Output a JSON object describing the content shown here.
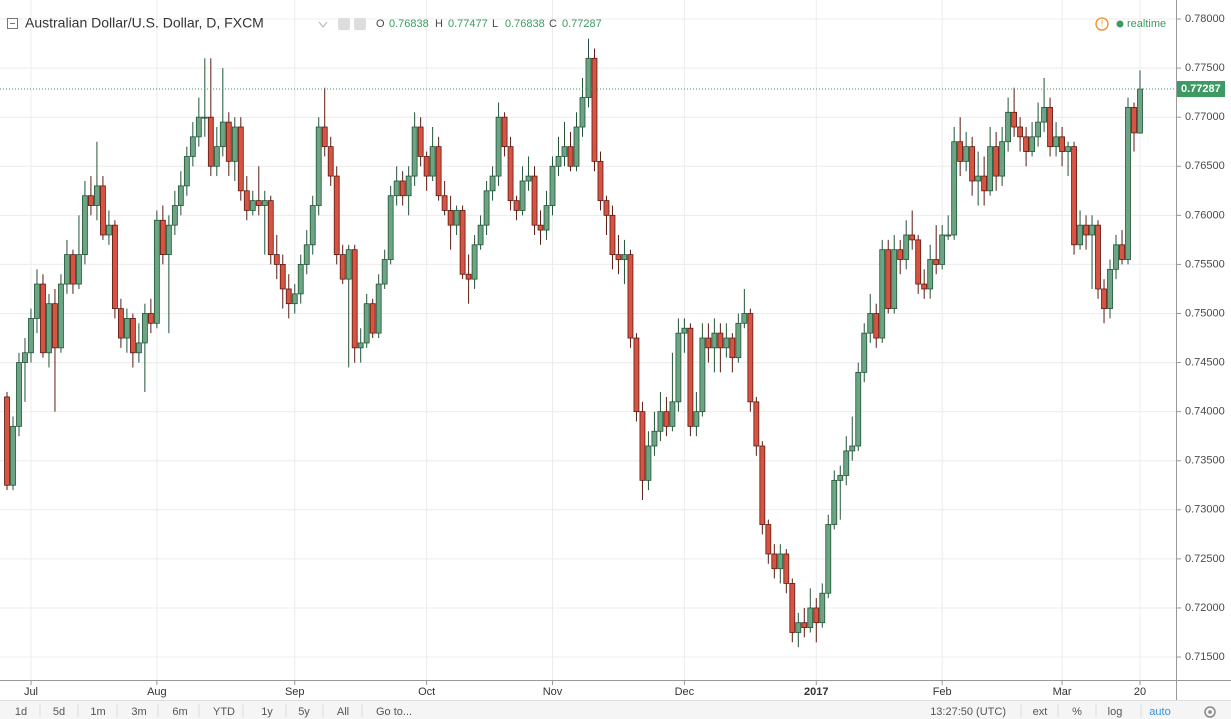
{
  "chart_data": {
    "type": "candlestick",
    "title": "Australian Dollar/U.S. Dollar, D, FXCM",
    "ohlc_header": [
      {
        "key": "O",
        "value": 0.76838
      },
      {
        "key": "H",
        "value": 0.77477
      },
      {
        "key": "L",
        "value": 0.76838
      },
      {
        "key": "C",
        "value": 0.77287
      }
    ],
    "status": "realtime",
    "up_color": "#6ba583",
    "up_border": "#225437",
    "down_color": "#d75442",
    "down_border": "#5b1a13",
    "grid": true,
    "ylim": [
      0.71266,
      0.78194
    ],
    "yticks": [
      {
        "value": 0.78,
        "label": "0.78000"
      },
      {
        "value": 0.775,
        "label": "0.77500"
      },
      {
        "value": 0.77,
        "label": "0.77000"
      },
      {
        "value": 0.765,
        "label": "0.76500"
      },
      {
        "value": 0.76,
        "label": "0.76000"
      },
      {
        "value": 0.755,
        "label": "0.75500"
      },
      {
        "value": 0.75,
        "label": "0.75000"
      },
      {
        "value": 0.745,
        "label": "0.74500"
      },
      {
        "value": 0.74,
        "label": "0.74000"
      },
      {
        "value": 0.735,
        "label": "0.73500"
      },
      {
        "value": 0.73,
        "label": "0.73000"
      },
      {
        "value": 0.725,
        "label": "0.72500"
      },
      {
        "value": 0.72,
        "label": "0.72000"
      },
      {
        "value": 0.715,
        "label": "0.71500"
      }
    ],
    "categories": [
      null,
      null,
      null,
      null,
      "Jul",
      null,
      null,
      null,
      null,
      null,
      null,
      null,
      null,
      null,
      null,
      null,
      null,
      null,
      null,
      null,
      null,
      null,
      null,
      null,
      null,
      "Aug",
      null,
      null,
      null,
      null,
      null,
      null,
      null,
      null,
      null,
      null,
      null,
      null,
      null,
      null,
      null,
      null,
      null,
      null,
      null,
      null,
      null,
      null,
      "Sep",
      null,
      null,
      null,
      null,
      null,
      null,
      null,
      null,
      null,
      null,
      null,
      null,
      null,
      null,
      null,
      null,
      null,
      null,
      null,
      null,
      null,
      "Oct",
      null,
      null,
      null,
      null,
      null,
      null,
      null,
      null,
      null,
      null,
      null,
      null,
      null,
      null,
      null,
      null,
      null,
      null,
      null,
      null,
      "Nov",
      null,
      null,
      null,
      null,
      null,
      null,
      null,
      null,
      null,
      null,
      null,
      null,
      null,
      null,
      null,
      null,
      null,
      null,
      null,
      null,
      null,
      "Dec",
      null,
      null,
      null,
      null,
      null,
      null,
      null,
      null,
      null,
      null,
      null,
      null,
      null,
      null,
      null,
      null,
      null,
      null,
      null,
      null,
      null,
      "2017",
      null,
      null,
      null,
      null,
      null,
      null,
      null,
      null,
      null,
      null,
      null,
      null,
      null,
      null,
      null,
      null,
      null,
      null,
      null,
      null,
      "Feb",
      null,
      null,
      null,
      null,
      null,
      null,
      null,
      null,
      null,
      null,
      null,
      null,
      null,
      null,
      null,
      null,
      null,
      null,
      null,
      "Mar",
      null,
      null,
      null,
      null,
      null,
      null,
      null,
      null,
      null,
      null,
      null,
      null,
      "20"
    ],
    "candles": [
      [
        0.7415,
        0.742,
        0.732,
        0.7325
      ],
      [
        0.7325,
        0.7395,
        0.732,
        0.7385
      ],
      [
        0.7385,
        0.746,
        0.7375,
        0.745
      ],
      [
        0.745,
        0.7475,
        0.741,
        0.746
      ],
      [
        0.746,
        0.7505,
        0.745,
        0.7495
      ],
      [
        0.7495,
        0.7545,
        0.748,
        0.753
      ],
      [
        0.753,
        0.754,
        0.7455,
        0.746
      ],
      [
        0.746,
        0.752,
        0.7445,
        0.751
      ],
      [
        0.751,
        0.7525,
        0.74,
        0.7465
      ],
      [
        0.7465,
        0.754,
        0.746,
        0.753
      ],
      [
        0.753,
        0.7575,
        0.752,
        0.756
      ],
      [
        0.756,
        0.7565,
        0.752,
        0.753
      ],
      [
        0.753,
        0.76,
        0.7525,
        0.756
      ],
      [
        0.756,
        0.7635,
        0.755,
        0.762
      ],
      [
        0.762,
        0.764,
        0.76,
        0.761
      ],
      [
        0.761,
        0.7675,
        0.7595,
        0.763
      ],
      [
        0.763,
        0.764,
        0.7575,
        0.758
      ],
      [
        0.758,
        0.7605,
        0.757,
        0.759
      ],
      [
        0.759,
        0.7595,
        0.7495,
        0.7505
      ],
      [
        0.7505,
        0.7515,
        0.7465,
        0.7475
      ],
      [
        0.7475,
        0.7505,
        0.746,
        0.7495
      ],
      [
        0.7495,
        0.75,
        0.7445,
        0.746
      ],
      [
        0.746,
        0.749,
        0.745,
        0.747
      ],
      [
        0.747,
        0.751,
        0.742,
        0.75
      ],
      [
        0.75,
        0.7515,
        0.748,
        0.749
      ],
      [
        0.749,
        0.7605,
        0.7485,
        0.7595
      ],
      [
        0.7595,
        0.761,
        0.755,
        0.756
      ],
      [
        0.756,
        0.76,
        0.748,
        0.759
      ],
      [
        0.759,
        0.7625,
        0.758,
        0.761
      ],
      [
        0.761,
        0.7645,
        0.76,
        0.763
      ],
      [
        0.763,
        0.767,
        0.762,
        0.766
      ],
      [
        0.766,
        0.7695,
        0.765,
        0.768
      ],
      [
        0.768,
        0.772,
        0.767,
        0.77
      ],
      [
        0.77,
        0.776,
        0.768,
        0.77
      ],
      [
        0.77,
        0.776,
        0.764,
        0.765
      ],
      [
        0.765,
        0.769,
        0.764,
        0.767
      ],
      [
        0.767,
        0.775,
        0.766,
        0.7695
      ],
      [
        0.7695,
        0.7705,
        0.764,
        0.7655
      ],
      [
        0.7655,
        0.77,
        0.7635,
        0.769
      ],
      [
        0.769,
        0.77,
        0.7615,
        0.7625
      ],
      [
        0.7625,
        0.764,
        0.7595,
        0.7605
      ],
      [
        0.7605,
        0.7625,
        0.76,
        0.7615
      ],
      [
        0.7615,
        0.765,
        0.76,
        0.761
      ],
      [
        0.761,
        0.7625,
        0.756,
        0.7615
      ],
      [
        0.7615,
        0.762,
        0.755,
        0.756
      ],
      [
        0.756,
        0.758,
        0.7535,
        0.755
      ],
      [
        0.755,
        0.756,
        0.7505,
        0.7525
      ],
      [
        0.7525,
        0.754,
        0.7495,
        0.751
      ],
      [
        0.751,
        0.753,
        0.75,
        0.752
      ],
      [
        0.752,
        0.756,
        0.751,
        0.755
      ],
      [
        0.755,
        0.7585,
        0.754,
        0.757
      ],
      [
        0.757,
        0.762,
        0.756,
        0.761
      ],
      [
        0.761,
        0.77,
        0.76,
        0.769
      ],
      [
        0.769,
        0.773,
        0.766,
        0.767
      ],
      [
        0.767,
        0.768,
        0.763,
        0.764
      ],
      [
        0.764,
        0.765,
        0.755,
        0.756
      ],
      [
        0.756,
        0.757,
        0.753,
        0.7535
      ],
      [
        0.7535,
        0.757,
        0.7445,
        0.7565
      ],
      [
        0.7565,
        0.757,
        0.745,
        0.7465
      ],
      [
        0.7465,
        0.7485,
        0.745,
        0.747
      ],
      [
        0.747,
        0.752,
        0.7465,
        0.751
      ],
      [
        0.751,
        0.7515,
        0.7475,
        0.748
      ],
      [
        0.748,
        0.754,
        0.7475,
        0.753
      ],
      [
        0.753,
        0.7565,
        0.7525,
        0.7555
      ],
      [
        0.7555,
        0.763,
        0.755,
        0.762
      ],
      [
        0.762,
        0.765,
        0.761,
        0.7635
      ],
      [
        0.7635,
        0.7645,
        0.761,
        0.762
      ],
      [
        0.762,
        0.765,
        0.76,
        0.764
      ],
      [
        0.764,
        0.7705,
        0.763,
        0.769
      ],
      [
        0.769,
        0.77,
        0.765,
        0.766
      ],
      [
        0.766,
        0.7665,
        0.7625,
        0.764
      ],
      [
        0.764,
        0.769,
        0.7635,
        0.767
      ],
      [
        0.767,
        0.768,
        0.7615,
        0.762
      ],
      [
        0.762,
        0.7635,
        0.76,
        0.7605
      ],
      [
        0.7605,
        0.762,
        0.7565,
        0.759
      ],
      [
        0.759,
        0.761,
        0.758,
        0.7605
      ],
      [
        0.7605,
        0.761,
        0.7535,
        0.754
      ],
      [
        0.754,
        0.756,
        0.751,
        0.7535
      ],
      [
        0.7535,
        0.758,
        0.7525,
        0.757
      ],
      [
        0.757,
        0.76,
        0.7565,
        0.759
      ],
      [
        0.759,
        0.7635,
        0.758,
        0.7625
      ],
      [
        0.7625,
        0.765,
        0.7615,
        0.764
      ],
      [
        0.764,
        0.7715,
        0.763,
        0.77
      ],
      [
        0.77,
        0.7705,
        0.766,
        0.767
      ],
      [
        0.767,
        0.768,
        0.7605,
        0.7615
      ],
      [
        0.7615,
        0.762,
        0.7595,
        0.7605
      ],
      [
        0.7605,
        0.765,
        0.76,
        0.7635
      ],
      [
        0.7635,
        0.766,
        0.7625,
        0.764
      ],
      [
        0.764,
        0.765,
        0.758,
        0.759
      ],
      [
        0.759,
        0.7605,
        0.757,
        0.7585
      ],
      [
        0.7585,
        0.7625,
        0.7575,
        0.761
      ],
      [
        0.761,
        0.766,
        0.76,
        0.765
      ],
      [
        0.765,
        0.768,
        0.764,
        0.766
      ],
      [
        0.766,
        0.7695,
        0.765,
        0.767
      ],
      [
        0.767,
        0.7685,
        0.7645,
        0.765
      ],
      [
        0.765,
        0.7705,
        0.7645,
        0.769
      ],
      [
        0.769,
        0.774,
        0.768,
        0.772
      ],
      [
        0.772,
        0.778,
        0.771,
        0.776
      ],
      [
        0.776,
        0.777,
        0.7645,
        0.7655
      ],
      [
        0.7655,
        0.7665,
        0.7605,
        0.7615
      ],
      [
        0.7615,
        0.762,
        0.758,
        0.76
      ],
      [
        0.76,
        0.761,
        0.7545,
        0.756
      ],
      [
        0.756,
        0.758,
        0.754,
        0.7555
      ],
      [
        0.7555,
        0.7575,
        0.753,
        0.756
      ],
      [
        0.756,
        0.7565,
        0.7465,
        0.7475
      ],
      [
        0.7475,
        0.748,
        0.739,
        0.74
      ],
      [
        0.74,
        0.741,
        0.731,
        0.733
      ],
      [
        0.733,
        0.738,
        0.732,
        0.7365
      ],
      [
        0.7365,
        0.74,
        0.7355,
        0.738
      ],
      [
        0.738,
        0.742,
        0.737,
        0.74
      ],
      [
        0.74,
        0.7415,
        0.7375,
        0.7385
      ],
      [
        0.7385,
        0.746,
        0.738,
        0.741
      ],
      [
        0.741,
        0.7495,
        0.74,
        0.748
      ],
      [
        0.748,
        0.7495,
        0.746,
        0.7485
      ],
      [
        0.7485,
        0.749,
        0.7375,
        0.7385
      ],
      [
        0.7385,
        0.742,
        0.7375,
        0.74
      ],
      [
        0.74,
        0.749,
        0.7395,
        0.7475
      ],
      [
        0.7475,
        0.749,
        0.745,
        0.7465
      ],
      [
        0.7465,
        0.7495,
        0.744,
        0.748
      ],
      [
        0.748,
        0.749,
        0.744,
        0.7465
      ],
      [
        0.7465,
        0.749,
        0.7455,
        0.7475
      ],
      [
        0.7475,
        0.748,
        0.744,
        0.7455
      ],
      [
        0.7455,
        0.75,
        0.745,
        0.749
      ],
      [
        0.749,
        0.7525,
        0.7485,
        0.75
      ],
      [
        0.75,
        0.7505,
        0.74,
        0.741
      ],
      [
        0.741,
        0.7415,
        0.7355,
        0.7365
      ],
      [
        0.7365,
        0.737,
        0.7275,
        0.7285
      ],
      [
        0.7285,
        0.729,
        0.7245,
        0.7255
      ],
      [
        0.7255,
        0.7265,
        0.723,
        0.724
      ],
      [
        0.724,
        0.7265,
        0.7225,
        0.7255
      ],
      [
        0.7255,
        0.726,
        0.7215,
        0.7225
      ],
      [
        0.7225,
        0.723,
        0.7165,
        0.7175
      ],
      [
        0.7175,
        0.7195,
        0.716,
        0.7185
      ],
      [
        0.7185,
        0.72,
        0.717,
        0.718
      ],
      [
        0.718,
        0.722,
        0.7175,
        0.72
      ],
      [
        0.72,
        0.721,
        0.7165,
        0.7185
      ],
      [
        0.7185,
        0.7225,
        0.718,
        0.7215
      ],
      [
        0.7215,
        0.7295,
        0.721,
        0.7285
      ],
      [
        0.7285,
        0.734,
        0.728,
        0.733
      ],
      [
        0.733,
        0.7345,
        0.729,
        0.7335
      ],
      [
        0.7335,
        0.7375,
        0.7325,
        0.736
      ],
      [
        0.736,
        0.7395,
        0.735,
        0.7365
      ],
      [
        0.7365,
        0.745,
        0.736,
        0.744
      ],
      [
        0.744,
        0.749,
        0.743,
        0.748
      ],
      [
        0.748,
        0.752,
        0.747,
        0.75
      ],
      [
        0.75,
        0.751,
        0.7465,
        0.7475
      ],
      [
        0.7475,
        0.7575,
        0.747,
        0.7565
      ],
      [
        0.7565,
        0.7575,
        0.75,
        0.7505
      ],
      [
        0.7505,
        0.758,
        0.75,
        0.7565
      ],
      [
        0.7565,
        0.7575,
        0.754,
        0.7555
      ],
      [
        0.7555,
        0.7595,
        0.7545,
        0.758
      ],
      [
        0.758,
        0.7605,
        0.7565,
        0.7575
      ],
      [
        0.7575,
        0.758,
        0.752,
        0.753
      ],
      [
        0.753,
        0.7545,
        0.7515,
        0.7525
      ],
      [
        0.7525,
        0.757,
        0.7515,
        0.7555
      ],
      [
        0.7555,
        0.759,
        0.754,
        0.755
      ],
      [
        0.755,
        0.759,
        0.7545,
        0.758
      ],
      [
        0.758,
        0.76,
        0.7575,
        0.758
      ],
      [
        0.758,
        0.769,
        0.7575,
        0.7675
      ],
      [
        0.7675,
        0.77,
        0.764,
        0.7655
      ],
      [
        0.7655,
        0.7685,
        0.7645,
        0.767
      ],
      [
        0.767,
        0.768,
        0.762,
        0.7635
      ],
      [
        0.7635,
        0.7665,
        0.761,
        0.764
      ],
      [
        0.764,
        0.766,
        0.761,
        0.7625
      ],
      [
        0.7625,
        0.769,
        0.762,
        0.767
      ],
      [
        0.767,
        0.7685,
        0.7625,
        0.764
      ],
      [
        0.764,
        0.769,
        0.763,
        0.7675
      ],
      [
        0.7675,
        0.772,
        0.7665,
        0.7705
      ],
      [
        0.7705,
        0.773,
        0.768,
        0.769
      ],
      [
        0.769,
        0.77,
        0.7665,
        0.768
      ],
      [
        0.768,
        0.769,
        0.765,
        0.7665
      ],
      [
        0.7665,
        0.7695,
        0.766,
        0.768
      ],
      [
        0.768,
        0.7715,
        0.767,
        0.7695
      ],
      [
        0.7695,
        0.774,
        0.7685,
        0.771
      ],
      [
        0.771,
        0.772,
        0.766,
        0.767
      ],
      [
        0.767,
        0.7695,
        0.766,
        0.768
      ],
      [
        0.768,
        0.769,
        0.765,
        0.7665
      ],
      [
        0.7665,
        0.7675,
        0.764,
        0.767
      ],
      [
        0.767,
        0.7675,
        0.756,
        0.757
      ],
      [
        0.757,
        0.7605,
        0.7565,
        0.759
      ],
      [
        0.759,
        0.76,
        0.7565,
        0.758
      ],
      [
        0.758,
        0.76,
        0.7525,
        0.759
      ],
      [
        0.759,
        0.7595,
        0.7515,
        0.7525
      ],
      [
        0.7525,
        0.7535,
        0.749,
        0.7505
      ],
      [
        0.7505,
        0.7555,
        0.7495,
        0.7545
      ],
      [
        0.7545,
        0.758,
        0.7535,
        0.757
      ],
      [
        0.757,
        0.7585,
        0.755,
        0.7555
      ],
      [
        0.7555,
        0.772,
        0.755,
        0.771
      ],
      [
        0.771,
        0.7715,
        0.7665,
        0.7684
      ],
      [
        0.76838,
        0.77477,
        0.76838,
        0.77287
      ]
    ]
  },
  "toolbar": {
    "ranges": [
      "1d",
      "5d",
      "1m",
      "3m",
      "6m",
      "YTD",
      "1y",
      "5y",
      "All"
    ],
    "goto": "Go to...",
    "time": "13:27:50 (UTC)",
    "options": [
      "ext",
      "%",
      "log",
      "auto"
    ]
  }
}
